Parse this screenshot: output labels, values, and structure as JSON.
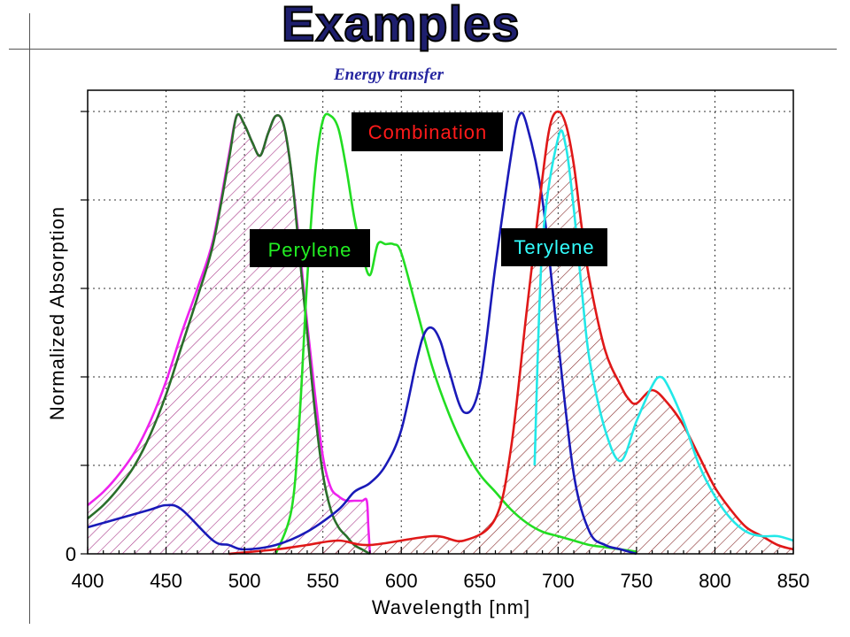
{
  "slide": {
    "title": "Examples",
    "subtitle": "Energy transfer"
  },
  "chart_data": {
    "type": "line",
    "xlabel": "Wavelength  [nm]",
    "ylabel": "Normalized Absorption",
    "xlim": [
      400,
      850
    ],
    "ylim": [
      0,
      1.0
    ],
    "x_ticks": [
      400,
      450,
      500,
      550,
      600,
      650,
      700,
      750,
      800,
      850
    ],
    "y_tick_labels": [
      "0"
    ],
    "grid": true,
    "annotations": [
      {
        "text": "Combination",
        "text_color": "#ff1a1a",
        "box_color": "#000000"
      },
      {
        "text": "Perylene",
        "text_color": "#22ee22",
        "box_color": "#000000"
      },
      {
        "text": "Terylene",
        "text_color": "#33ffff",
        "box_color": "#000000"
      }
    ],
    "series": [
      {
        "color": "#ee22ee",
        "hatched": true,
        "x": [
          400,
          410,
          420,
          430,
          440,
          450,
          460,
          470,
          480,
          490,
          495,
          500,
          505,
          510,
          515,
          520,
          525,
          530,
          535,
          540,
          545,
          550,
          555,
          560,
          565,
          570,
          575,
          578,
          579,
          580
        ],
        "y": [
          0.11,
          0.14,
          0.18,
          0.23,
          0.3,
          0.39,
          0.5,
          0.6,
          0.71,
          0.9,
          0.99,
          0.97,
          0.93,
          0.9,
          0.95,
          0.99,
          0.97,
          0.86,
          0.7,
          0.52,
          0.36,
          0.22,
          0.15,
          0.13,
          0.12,
          0.12,
          0.12,
          0.12,
          0.06,
          0.0
        ]
      },
      {
        "color": "#2a6e2a",
        "x": [
          400,
          410,
          420,
          430,
          440,
          450,
          460,
          470,
          480,
          490,
          495,
          500,
          505,
          510,
          515,
          520,
          525,
          530,
          535,
          540,
          545,
          550,
          555,
          560,
          565,
          570,
          575,
          580
        ],
        "y": [
          0.08,
          0.11,
          0.15,
          0.2,
          0.27,
          0.36,
          0.47,
          0.58,
          0.7,
          0.89,
          0.99,
          0.97,
          0.93,
          0.9,
          0.95,
          0.99,
          0.97,
          0.86,
          0.68,
          0.5,
          0.32,
          0.18,
          0.1,
          0.06,
          0.04,
          0.02,
          0.01,
          0.0
        ]
      },
      {
        "color": "#22dd22",
        "x": [
          520,
          530,
          535,
          540,
          545,
          550,
          555,
          560,
          565,
          570,
          575,
          580,
          585,
          590,
          595,
          600,
          610,
          620,
          630,
          640,
          650,
          660,
          670,
          680,
          690,
          700,
          710,
          720,
          730,
          740,
          750
        ],
        "y": [
          0.0,
          0.1,
          0.3,
          0.62,
          0.86,
          0.98,
          0.99,
          0.96,
          0.87,
          0.76,
          0.68,
          0.63,
          0.7,
          0.7,
          0.7,
          0.68,
          0.55,
          0.42,
          0.32,
          0.24,
          0.18,
          0.14,
          0.1,
          0.07,
          0.05,
          0.04,
          0.03,
          0.02,
          0.015,
          0.01,
          0.005
        ]
      },
      {
        "color": "#1a1ab8",
        "x": [
          400,
          420,
          440,
          450,
          460,
          480,
          490,
          500,
          520,
          540,
          560,
          570,
          580,
          590,
          600,
          610,
          615,
          620,
          625,
          630,
          640,
          650,
          660,
          670,
          675,
          680,
          690,
          700,
          710,
          720,
          730,
          740,
          750
        ],
        "y": [
          0.06,
          0.08,
          0.1,
          0.11,
          0.1,
          0.03,
          0.02,
          0.01,
          0.02,
          0.05,
          0.1,
          0.14,
          0.16,
          0.2,
          0.28,
          0.44,
          0.5,
          0.51,
          0.48,
          0.42,
          0.32,
          0.38,
          0.65,
          0.9,
          0.99,
          0.97,
          0.8,
          0.48,
          0.18,
          0.05,
          0.02,
          0.01,
          0.0
        ]
      },
      {
        "color": "#e01818",
        "x": [
          490,
          520,
          540,
          560,
          580,
          620,
          640,
          660,
          670,
          680,
          690,
          695,
          700,
          705,
          710,
          715,
          720,
          730,
          740,
          745,
          750,
          760,
          770,
          780,
          790,
          800,
          810,
          820,
          830,
          840,
          850
        ],
        "y": [
          0.0,
          0.01,
          0.02,
          0.03,
          0.02,
          0.04,
          0.03,
          0.08,
          0.24,
          0.55,
          0.85,
          0.97,
          1.0,
          0.97,
          0.88,
          0.74,
          0.62,
          0.46,
          0.38,
          0.35,
          0.34,
          0.37,
          0.34,
          0.29,
          0.22,
          0.15,
          0.1,
          0.06,
          0.04,
          0.02,
          0.01
        ]
      },
      {
        "color": "#22e8e8",
        "x": [
          685,
          690,
          700,
          705,
          710,
          715,
          720,
          730,
          740,
          750,
          760,
          765,
          770,
          780,
          790,
          800,
          810,
          820,
          830,
          840,
          850
        ],
        "y": [
          0.2,
          0.7,
          0.94,
          0.92,
          0.78,
          0.6,
          0.44,
          0.28,
          0.21,
          0.3,
          0.38,
          0.4,
          0.38,
          0.3,
          0.2,
          0.13,
          0.08,
          0.05,
          0.04,
          0.04,
          0.03
        ]
      }
    ]
  }
}
